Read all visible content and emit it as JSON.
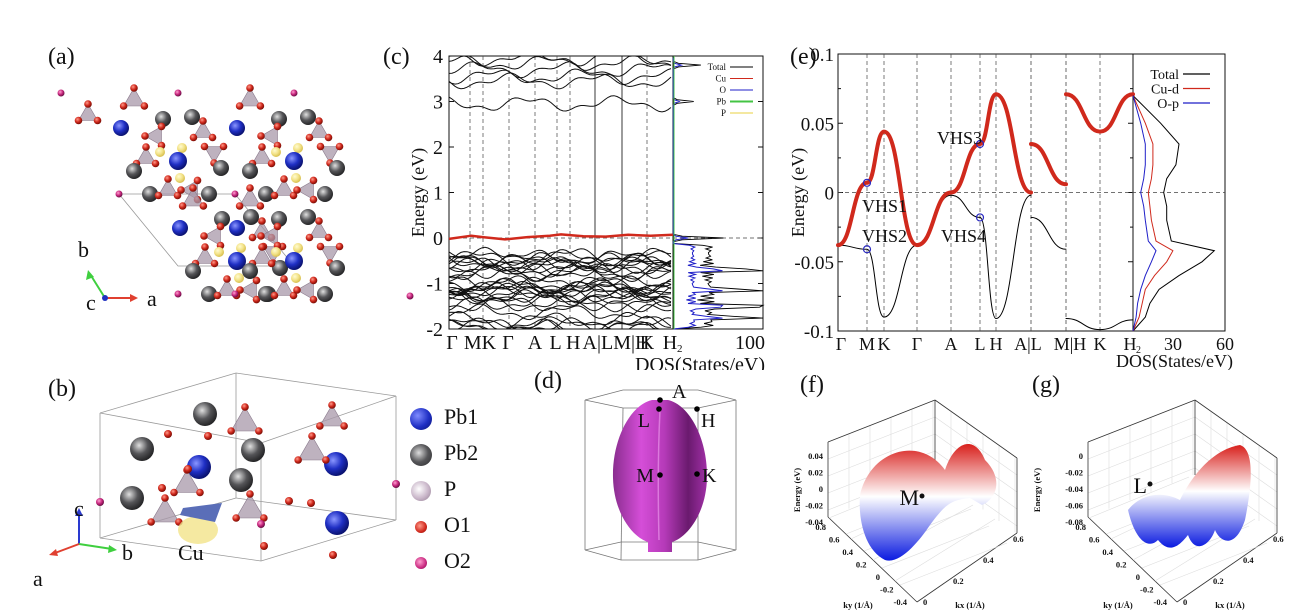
{
  "figure": {
    "panel_labels": [
      "(a)",
      "(b)",
      "(c)",
      "(d)",
      "(e)",
      "(f)",
      "(g)"
    ]
  },
  "panel_a": {
    "axes": {
      "b": "b",
      "c": "c",
      "a": "a"
    }
  },
  "panel_b": {
    "axes": {
      "c": "c",
      "b": "b",
      "a": "a"
    },
    "cu_label": "Cu",
    "legend": [
      {
        "label": "Pb1",
        "color": "#1f2fc4"
      },
      {
        "label": "Pb2",
        "color": "#555558"
      },
      {
        "label": "P",
        "color": "#c9b6c9"
      },
      {
        "label": "O1",
        "color": "#d0281c"
      },
      {
        "label": "O2",
        "color": "#c8287f"
      }
    ]
  },
  "panel_d": {
    "points": [
      "A",
      "L",
      "H",
      "M",
      "K"
    ],
    "surface_color": "#b53ab8"
  },
  "colors": {
    "total": "#000000",
    "cu": "#d0291c",
    "o": "#1f1fc8",
    "pb": "#44c444",
    "p": "#e8d040",
    "vhs_marker": "#2a2ac0"
  },
  "chart_data": [
    {
      "id": "c",
      "type": "line",
      "title": "",
      "ylabel": "Energy (eV)",
      "xlabel": "DOS(States/eV)",
      "ylim": [
        -2,
        4
      ],
      "yticks": [
        "-2",
        "-1",
        "0",
        "1",
        "2",
        "3",
        "4"
      ],
      "kpath_labels": [
        "Γ",
        "MK",
        "Γ",
        "A",
        "L H",
        "A|LM|H",
        "K",
        "H₂"
      ],
      "kpath_ticks": [
        "Γ",
        "M",
        "K",
        "Γ",
        "A",
        "L",
        "H",
        "A|L",
        "M|H",
        "K",
        "H₂"
      ],
      "dos_xlim": [
        0,
        100
      ],
      "dos_xticks": [
        "100"
      ],
      "legend": [
        "Total",
        "Cu",
        "O",
        "Pb",
        "P"
      ],
      "legend_placement": "top-right",
      "fermi_level": 0,
      "bands_note": "flat Cu band near 0 eV (highlighted red); valence bands between -2 and -0.2 eV; conduction bands near 2.9–4 eV",
      "cu_band": {
        "k": [
          0,
          0.1,
          0.15,
          0.25,
          0.35,
          0.45,
          0.5,
          0.6,
          0.7,
          0.8,
          0.9,
          1.0
        ],
        "E": [
          -0.02,
          0.05,
          0.02,
          -0.03,
          0.02,
          0.05,
          0.08,
          0.04,
          0.03,
          0.07,
          0.05,
          0.07
        ]
      },
      "dos_peaks": {
        "E": [
          3.8,
          3.0,
          0.0,
          -0.7,
          -1.15,
          -1.5,
          -1.75
        ],
        "total": [
          30,
          22,
          55,
          85,
          95,
          100,
          70
        ]
      }
    },
    {
      "id": "e",
      "type": "line",
      "ylabel": "Energy (eV)",
      "xlabel": "DOS(States/eV)",
      "ylim": [
        -0.1,
        0.1
      ],
      "yticks": [
        "-0.1",
        "-0.05",
        "0",
        "0.05",
        "0.1"
      ],
      "kpath_ticks": [
        "Γ",
        "M",
        "K",
        "Γ",
        "A",
        "L",
        "H",
        "A|L",
        "M|H",
        "K",
        "H₂"
      ],
      "dos_xlim": [
        0,
        60
      ],
      "dos_xticks": [
        "30",
        "60"
      ],
      "legend": [
        "Total",
        "Cu-d",
        "O-p"
      ],
      "legend_placement": "top-right",
      "annotations": [
        {
          "label": "VHS1",
          "k": "M",
          "E": 0.007
        },
        {
          "label": "VHS2",
          "k": "M",
          "E": -0.041
        },
        {
          "label": "VHS3",
          "k": "L",
          "E": 0.035
        },
        {
          "label": "VHS4",
          "k": "L",
          "E": -0.018
        }
      ],
      "upper_band": {
        "segment1_k": [
          "Γ",
          "M",
          "K",
          "Γ",
          "A",
          "L",
          "H",
          "A"
        ],
        "segment1_E": [
          -0.038,
          0.007,
          0.044,
          -0.038,
          0.0,
          0.035,
          0.071,
          0.0
        ],
        "segment2_k": [
          "L",
          "M"
        ],
        "segment2_E": [
          0.035,
          0.006
        ],
        "segment3_k": [
          "H",
          "K",
          "H₂"
        ],
        "segment3_E": [
          0.071,
          0.044,
          0.071
        ]
      },
      "lower_band": {
        "segment1_k": [
          "Γ",
          "M",
          "K",
          "Γ",
          "A",
          "L",
          "H",
          "A"
        ],
        "segment1_E": [
          -0.038,
          -0.041,
          -0.09,
          -0.038,
          -0.002,
          -0.018,
          -0.091,
          -0.002
        ],
        "segment2_k": [
          "L",
          "M"
        ],
        "segment2_E": [
          -0.018,
          -0.041
        ],
        "segment3_k": [
          "H",
          "K",
          "H₂"
        ],
        "segment3_E": [
          -0.091,
          -0.099,
          -0.092
        ]
      },
      "dos": {
        "E": [
          -0.1,
          -0.09,
          -0.08,
          -0.07,
          -0.06,
          -0.05,
          -0.042,
          -0.035,
          -0.02,
          -0.01,
          0,
          0.01,
          0.02,
          0.035,
          0.05,
          0.07
        ],
        "total": [
          0,
          8,
          11,
          17,
          30,
          45,
          53,
          25,
          22,
          22,
          20,
          22,
          28,
          30,
          18,
          0
        ],
        "cu_d": [
          0,
          4,
          6,
          8,
          14,
          22,
          26,
          15,
          12,
          11,
          10,
          12,
          13,
          13,
          8,
          0
        ],
        "o_p": [
          0,
          2,
          3,
          5,
          8,
          12,
          15,
          10,
          8,
          7,
          5,
          7,
          8,
          8,
          5,
          0
        ]
      }
    },
    {
      "id": "f",
      "type": "surface",
      "point_label": "M",
      "zlabel": "Energy (eV)",
      "zticks": [
        "-0.04",
        "-0.02",
        "0",
        "0.02",
        "0.04"
      ],
      "ylabel": "ky (1/Å)",
      "yticks": [
        "0.8",
        "0.6",
        "0.4",
        "0.2",
        "0",
        "-0.2",
        "-0.4"
      ],
      "xlabel": "kx (1/Å)",
      "xticks": [
        "0",
        "0.2",
        "0.4",
        "0.6"
      ]
    },
    {
      "id": "g",
      "type": "surface",
      "point_label": "L",
      "zlabel": "Energy (eV)",
      "zticks": [
        "0",
        "-0.02",
        "-0.04",
        "-0.06",
        "-0.08"
      ],
      "ylabel": "ky (1/Å)",
      "yticks": [
        "0.8",
        "0.6",
        "0.4",
        "0.2",
        "0",
        "-0.2",
        "-0.4"
      ],
      "xlabel": "kx (1/Å)",
      "xticks": [
        "0",
        "0.2",
        "0.4",
        "0.6"
      ]
    }
  ]
}
